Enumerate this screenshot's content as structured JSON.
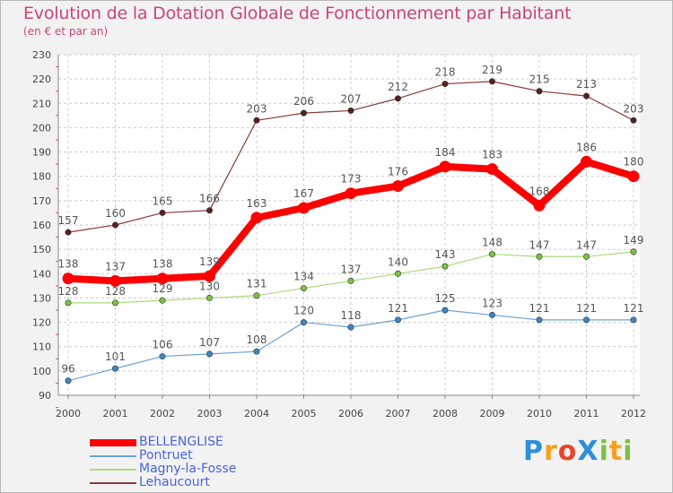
{
  "title": "Evolution de la Dotation Globale de Fonctionnement par Habitant",
  "subtitle": "(en € et par an)",
  "logo": {
    "text": "Proxiti",
    "letters": [
      {
        "ch": "P",
        "color": "#2e8fd8"
      },
      {
        "ch": "r",
        "color": "#f4a11d"
      },
      {
        "ch": "o",
        "color": "#e8452c"
      },
      {
        "ch": "X",
        "color": "#2e8fd8"
      },
      {
        "ch": "i",
        "color": "#7cc242"
      },
      {
        "ch": "t",
        "color": "#f4a11d"
      },
      {
        "ch": "i",
        "color": "#7cc242"
      }
    ]
  },
  "chart_data": {
    "type": "line",
    "title": "Evolution de la Dotation Globale de Fonctionnement par Habitant",
    "ylabel": "(en € et par an)",
    "xlabel": "",
    "x": [
      "2000",
      "2001",
      "2002",
      "2003",
      "2004",
      "2005",
      "2006",
      "2007",
      "2008",
      "2009",
      "2010",
      "2011",
      "2012"
    ],
    "ylim": [
      90,
      230
    ],
    "yticks": [
      90,
      100,
      110,
      120,
      130,
      140,
      150,
      160,
      170,
      180,
      190,
      200,
      210,
      220,
      230
    ],
    "grid": true,
    "legend_position": "bottom-left",
    "series": [
      {
        "name": "Lehaucourt",
        "color": "#8b3a3a",
        "marker": "#5a1f1f",
        "weight": "thin",
        "values": [
          157,
          160,
          165,
          166,
          203,
          206,
          207,
          212,
          218,
          219,
          215,
          213,
          203
        ]
      },
      {
        "name": "Magny-la-Fosse",
        "color": "#a8dc7c",
        "marker": "#7cc242",
        "weight": "thin",
        "values": [
          128,
          128,
          129,
          130,
          131,
          134,
          137,
          140,
          143,
          148,
          147,
          147,
          149
        ]
      },
      {
        "name": "Pontruet",
        "color": "#6fa3d0",
        "marker": "#3d86c6",
        "weight": "thin",
        "values": [
          96,
          101,
          106,
          107,
          108,
          120,
          118,
          121,
          125,
          123,
          121,
          121,
          121
        ]
      },
      {
        "name": "BELLENGLISE",
        "color": "#ff0000",
        "marker": "#ff0000",
        "weight": "thick",
        "values": [
          138,
          137,
          138,
          139,
          163,
          167,
          173,
          176,
          184,
          183,
          168,
          186,
          180
        ]
      }
    ],
    "legend": [
      "BELLENGLISE",
      "Pontruet",
      "Magny-la-Fosse",
      "Lehaucourt"
    ]
  }
}
